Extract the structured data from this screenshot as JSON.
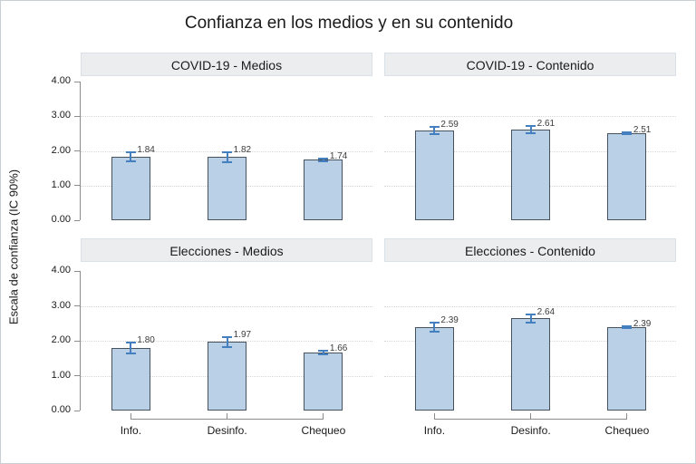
{
  "title": "Confianza en los medios y en su contenido",
  "ylabel": "Escala de confianza (IC 90%)",
  "colors": {
    "bar_fill": "#b9d0e6",
    "bar_border": "#46525e",
    "error_bar": "#4480c0",
    "grid": "#d6d6d6",
    "axis": "#8c8c8c",
    "header_bg": "#ecedee",
    "header_border": "#d9e0e7",
    "text": "#1a1a1a",
    "value_label": "#3c3c3c"
  },
  "chart_data": {
    "type": "bar",
    "title": "Confianza en los medios y en su contenido",
    "ylabel": "Escala de confianza (IC 90%)",
    "categories": [
      "Info.",
      "Desinfo.",
      "Chequeo"
    ],
    "ylim": [
      0,
      4
    ],
    "ytick_values": [
      0,
      1,
      2,
      3,
      4
    ],
    "ytick_labels": [
      "0.00",
      "1.00",
      "2.00",
      "3.00",
      "4.00"
    ],
    "grid_at": [
      1,
      2,
      3
    ],
    "grid": "dotted horizontal",
    "legend": "none",
    "error_bars": "90% confidence intervals",
    "panels": [
      {
        "title": "COVID-19 - Medios",
        "values": [
          1.84,
          1.82,
          1.74
        ],
        "value_labels": [
          "1.84",
          "1.82",
          "1.74"
        ],
        "ci_low": [
          1.68,
          1.64,
          1.67
        ],
        "ci_high": [
          2.0,
          2.0,
          1.81
        ]
      },
      {
        "title": "COVID-19 - Contenido",
        "values": [
          2.59,
          2.61,
          2.51
        ],
        "value_labels": [
          "2.59",
          "2.61",
          "2.51"
        ],
        "ci_low": [
          2.45,
          2.48,
          2.45
        ],
        "ci_high": [
          2.73,
          2.74,
          2.57
        ]
      },
      {
        "title": "Elecciones - Medios",
        "values": [
          1.8,
          1.97,
          1.66
        ],
        "value_labels": [
          "1.80",
          "1.97",
          "1.66"
        ],
        "ci_low": [
          1.62,
          1.8,
          1.59
        ],
        "ci_high": [
          1.98,
          2.14,
          1.73
        ]
      },
      {
        "title": "Elecciones - Contenido",
        "values": [
          2.39,
          2.64,
          2.39
        ],
        "value_labels": [
          "2.39",
          "2.64",
          "2.39"
        ],
        "ci_low": [
          2.23,
          2.5,
          2.34
        ],
        "ci_high": [
          2.55,
          2.78,
          2.44
        ]
      }
    ]
  }
}
